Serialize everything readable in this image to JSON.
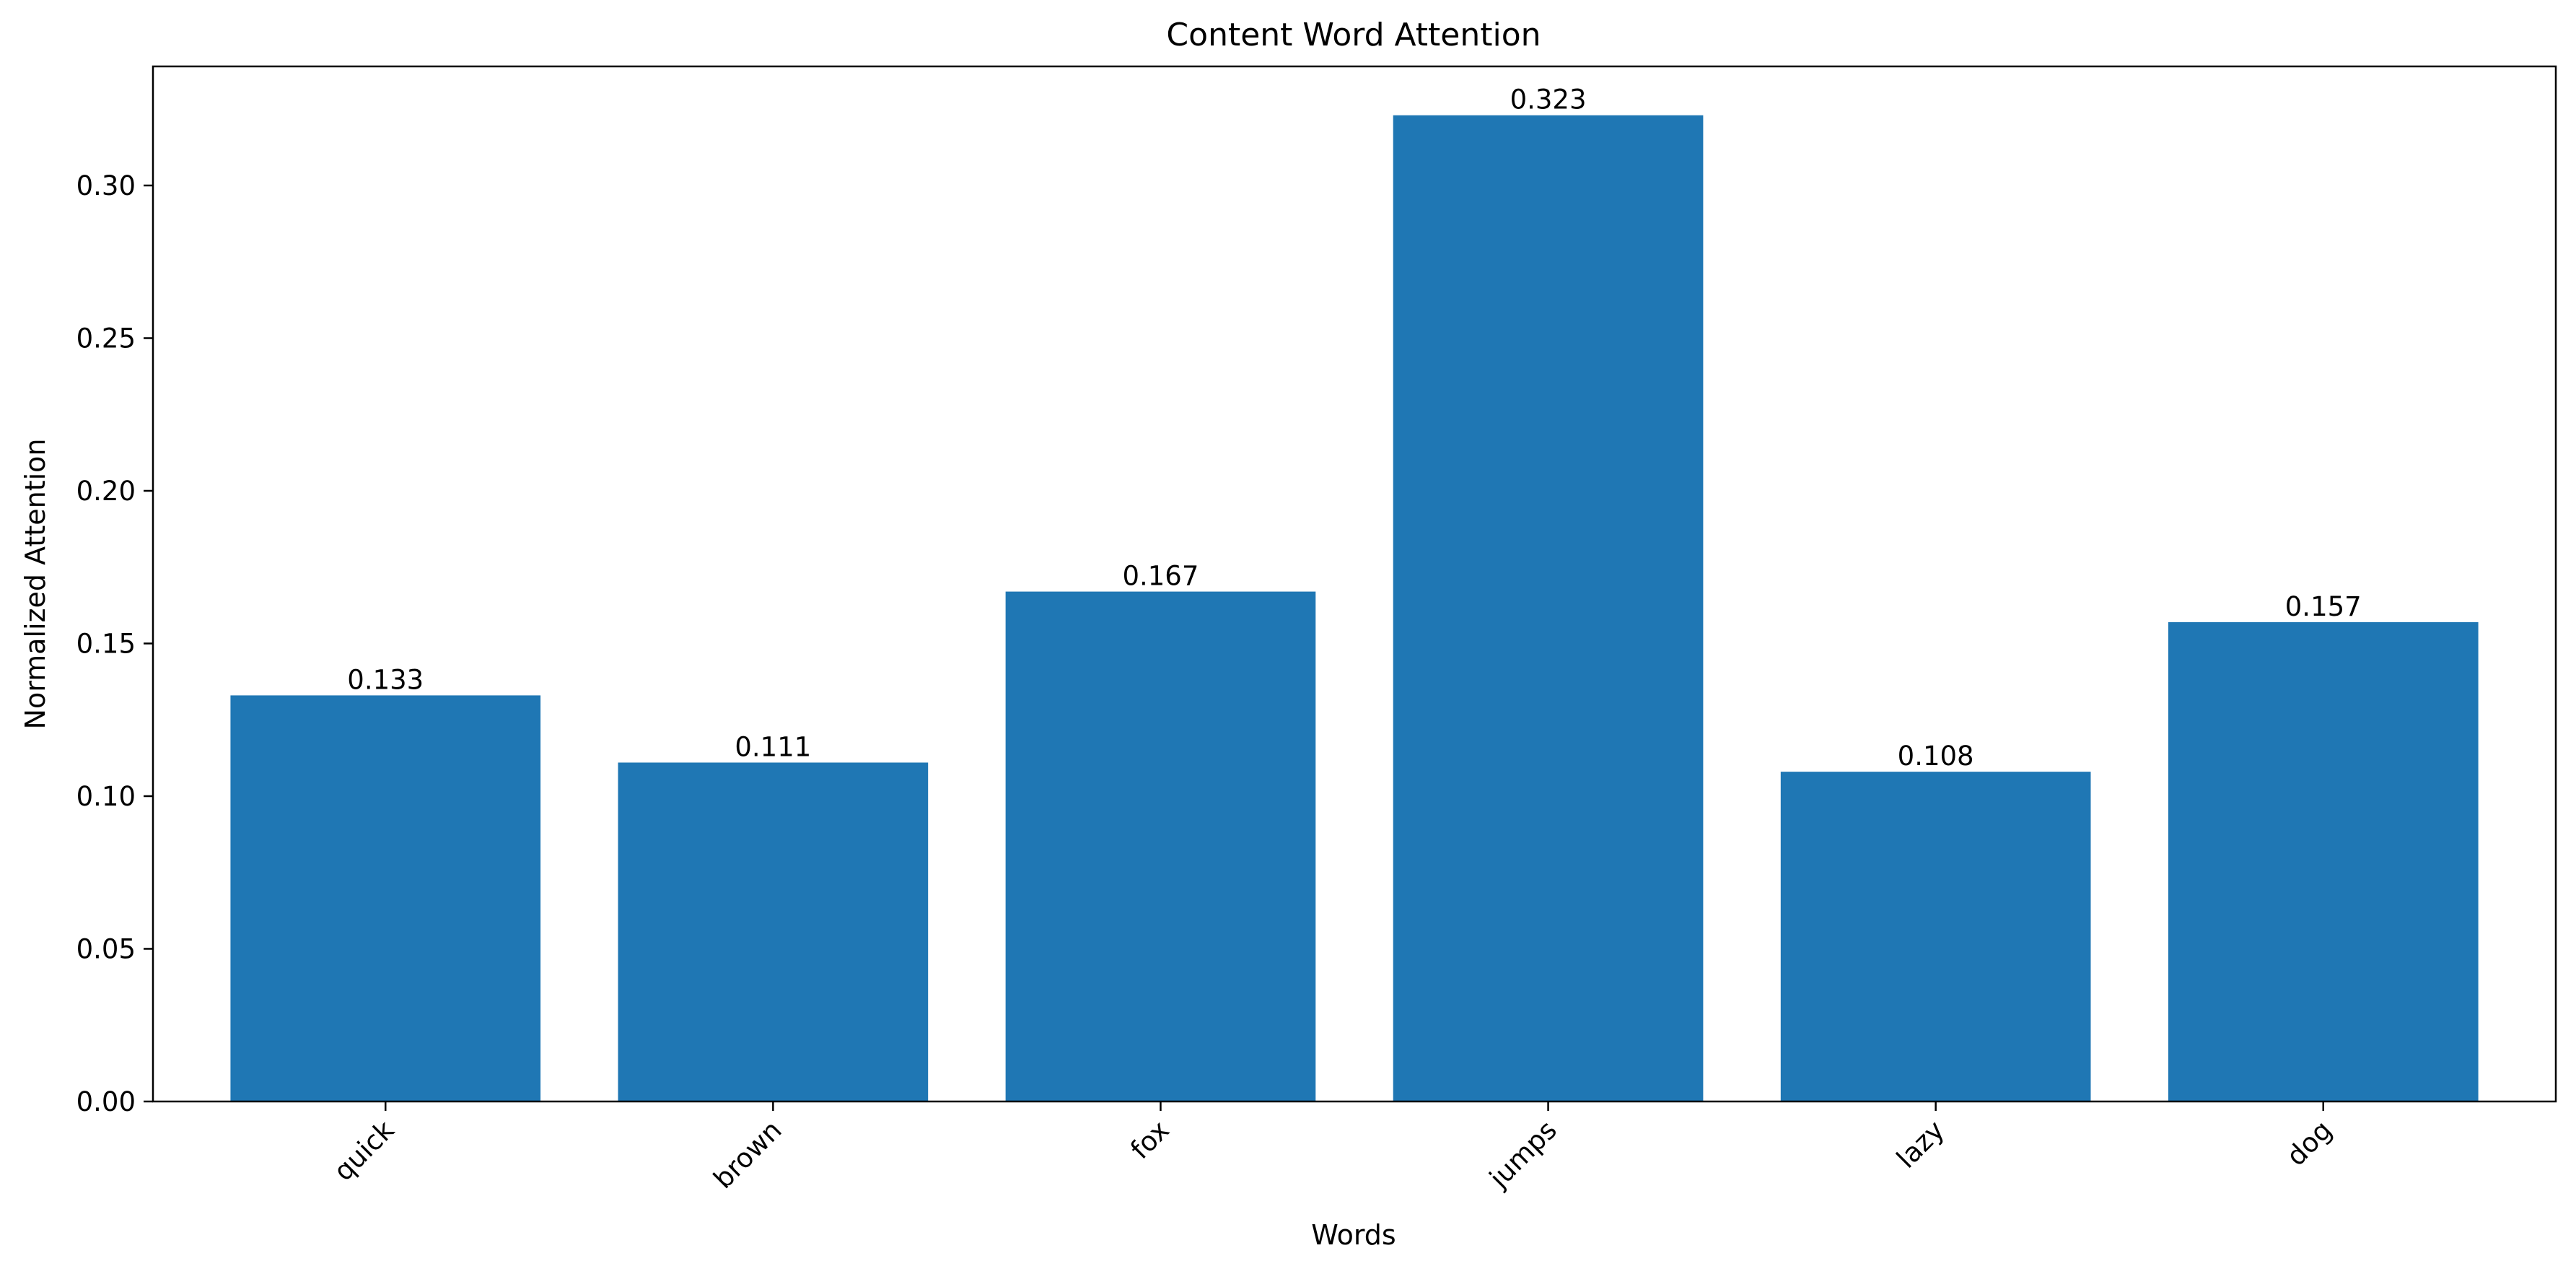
{
  "chart_data": {
    "type": "bar",
    "title": "Content Word Attention",
    "xlabel": "Words",
    "ylabel": "Normalized Attention",
    "categories": [
      "quick",
      "brown",
      "fox",
      "jumps",
      "lazy",
      "dog"
    ],
    "values": [
      0.133,
      0.111,
      0.167,
      0.323,
      0.108,
      0.157
    ],
    "value_labels": [
      "0.133",
      "0.111",
      "0.167",
      "0.323",
      "0.108",
      "0.157"
    ],
    "ylim": [
      0,
      0.339
    ],
    "yticks": [
      0.0,
      0.05,
      0.1,
      0.15,
      0.2,
      0.25,
      0.3
    ],
    "ytick_labels": [
      "0.00",
      "0.05",
      "0.10",
      "0.15",
      "0.20",
      "0.25",
      "0.30"
    ],
    "bar_color": "#1f77b4",
    "grid": false,
    "legend": "none",
    "xtick_rotation_deg": -45
  }
}
